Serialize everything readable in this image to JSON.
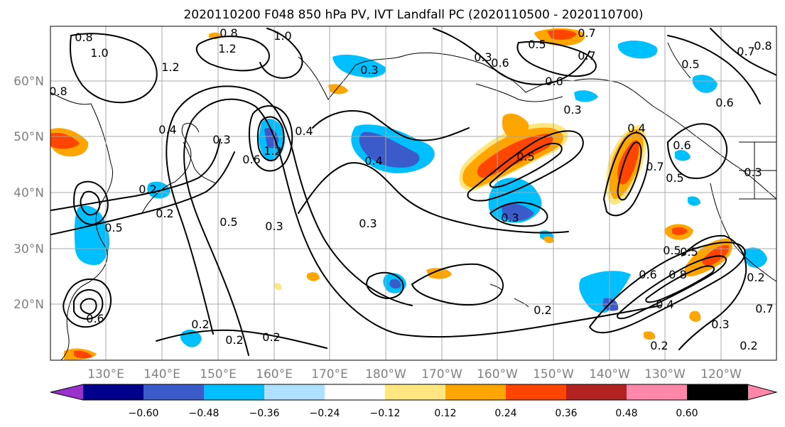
{
  "title": "2020110200 F048 850 hPa PV, IVT Landfall PC (2020110500 - 2020110700)",
  "lat_labels": [
    "60°N",
    "50°N",
    "40°N",
    "30°N",
    "20°N"
  ],
  "lon_labels": [
    "130°E",
    "140°E",
    "150°E",
    "160°E",
    "170°E",
    "180°W",
    "170°W",
    "160°W",
    "150°W",
    "140°W",
    "130°W",
    "120°W"
  ],
  "colorbar": {
    "colors": [
      "#9932cc",
      "#00008b",
      "#3a5bc9",
      "#00bfff",
      "#b0e0ff",
      "#ffffff",
      "#ffe680",
      "#ffa500",
      "#ff4500",
      "#b22222",
      "#ff88aa"
    ],
    "tick_labels": [
      "−0.60",
      "−0.48",
      "−0.36",
      "−0.24",
      "−0.12",
      "0.12",
      "0.24",
      "0.36",
      "0.48",
      "0.60"
    ]
  },
  "contour_labels": [
    "0.8",
    "1.0",
    "0.8",
    "1.2",
    "1.0",
    "1.2",
    "0.7",
    "0.3",
    "0.5",
    "0.6",
    "0.7",
    "0.7",
    "0.5",
    "0.6",
    "0.6",
    "0.3",
    "0.4",
    "0.3",
    "1.2",
    "0.4",
    "0.6",
    "0.5",
    "0.6",
    "0.3",
    "0.2",
    "0.5",
    "0.3",
    "0.2",
    "0.5",
    "0.3",
    "0.4",
    "0.4",
    "0.7",
    "0.3",
    "0.5",
    "0.3",
    "0.5",
    "0.6",
    "0.8",
    "0.2",
    "0.4",
    "0.5",
    "0.2",
    "0.2",
    "0.2",
    "0.6",
    "0.2",
    "0.3",
    "0.2",
    "0.2",
    "0.7",
    "0.8",
    "0.8"
  ]
}
